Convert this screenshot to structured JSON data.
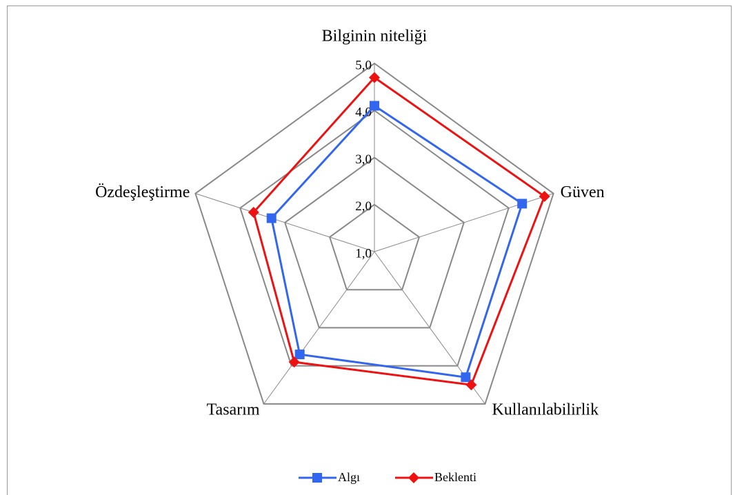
{
  "chart_data": {
    "type": "radar",
    "categories": [
      "Bilginin niteliği",
      "Güven",
      "Kullanılabilirlik",
      "Tasarım",
      "Özdeşleştirme"
    ],
    "series": [
      {
        "name": "Algı",
        "color": "#3366ee",
        "values": [
          4.1,
          4.3,
          4.3,
          3.7,
          3.3
        ]
      },
      {
        "name": "Beklenti",
        "color": "#ee1111",
        "values": [
          4.7,
          4.8,
          4.5,
          3.9,
          3.7
        ]
      }
    ],
    "ylim": [
      1,
      5
    ],
    "yticks": [
      {
        "value": 1,
        "label": "1,0"
      },
      {
        "value": 2,
        "label": "2,0"
      },
      {
        "value": 3,
        "label": "3,0"
      },
      {
        "value": 4,
        "label": "4,0"
      },
      {
        "value": 5,
        "label": "5,0"
      }
    ],
    "grid": true,
    "legend": "bottom"
  }
}
